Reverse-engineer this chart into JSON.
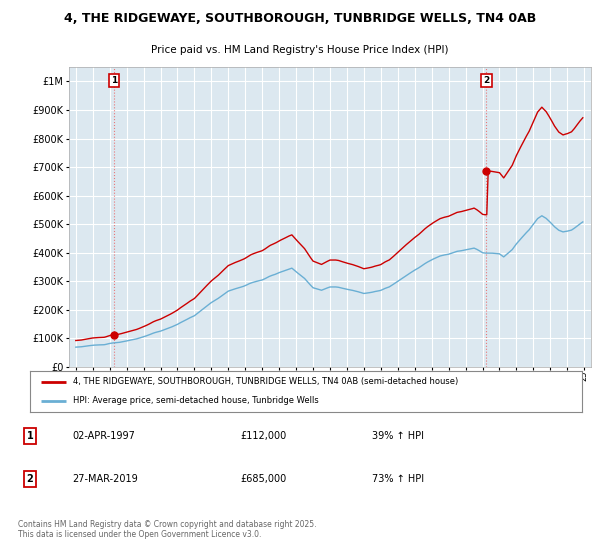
{
  "title1": "4, THE RIDGEWAYE, SOUTHBOROUGH, TUNBRIDGE WELLS, TN4 0AB",
  "title2": "Price paid vs. HM Land Registry's House Price Index (HPI)",
  "legend_label1": "4, THE RIDGEWAYE, SOUTHBOROUGH, TUNBRIDGE WELLS, TN4 0AB (semi-detached house)",
  "legend_label2": "HPI: Average price, semi-detached house, Tunbridge Wells",
  "transaction1": {
    "label": "1",
    "date": "02-APR-1997",
    "price": "£112,000",
    "hpi": "39% ↑ HPI",
    "x_year": 1997.25,
    "y_value": 112000
  },
  "transaction2": {
    "label": "2",
    "date": "27-MAR-2019",
    "price": "£685,000",
    "hpi": "73% ↑ HPI",
    "x_year": 2019.23,
    "y_value": 685000
  },
  "footnote": "Contains HM Land Registry data © Crown copyright and database right 2025.\nThis data is licensed under the Open Government Licence v3.0.",
  "ylim": [
    0,
    1050000
  ],
  "xlim_start": 1994.6,
  "xlim_end": 2025.4,
  "background_color": "#dce8f0",
  "grid_color": "#ffffff",
  "line_color_red": "#cc0000",
  "line_color_blue": "#6aafd4",
  "dashed_line_color": "#e87878",
  "marker_color_red": "#cc0000",
  "title_color": "#000000"
}
